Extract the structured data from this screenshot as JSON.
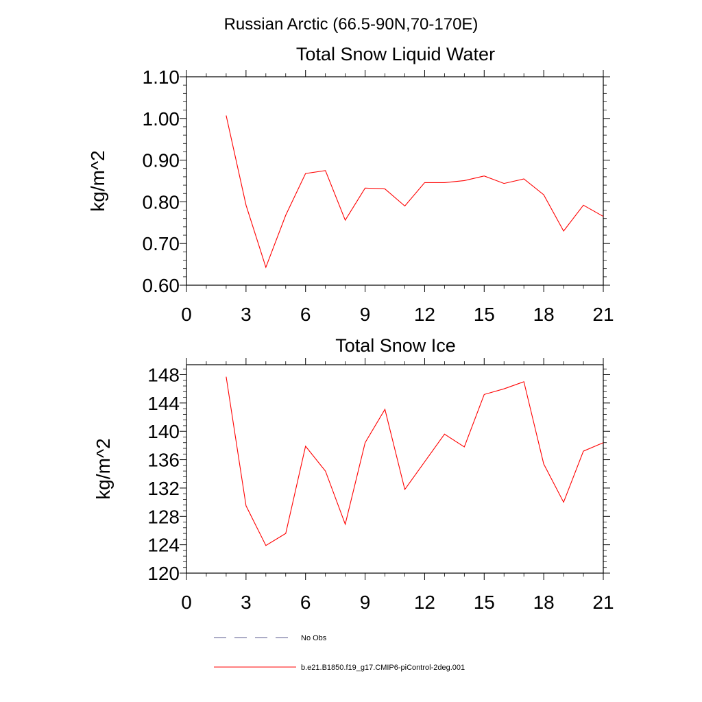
{
  "figure": {
    "main_title": "Russian Arctic (66.5-90N,70-170E)"
  },
  "legend": [
    {
      "label": "No Obs",
      "style": "dashed",
      "color": "#5a5a8c"
    },
    {
      "label": "b.e21.B1850.f19_g17.CMIP6-piControl-2deg.001",
      "style": "solid",
      "color": "#ff0000"
    }
  ],
  "chart_data": [
    {
      "type": "line",
      "title": "Total Snow Liquid Water",
      "xlabel": "",
      "ylabel": "kg/m^2",
      "xlim": [
        0,
        21
      ],
      "ylim": [
        0.6,
        1.1
      ],
      "x_ticks": [
        0,
        3,
        6,
        9,
        12,
        15,
        18,
        21
      ],
      "x_tick_labels": [
        "0",
        "3",
        "6",
        "9",
        "12",
        "15",
        "18",
        "21"
      ],
      "y_ticks": [
        0.6,
        0.7,
        0.8,
        0.9,
        1.0,
        1.1
      ],
      "y_tick_labels": [
        "0.60",
        "0.70",
        "0.80",
        "0.90",
        "1.00",
        "1.10"
      ],
      "grid": false,
      "series": [
        {
          "color": "#ff0000",
          "x": [
            2,
            3,
            4,
            5,
            6,
            7,
            8,
            9,
            10,
            11,
            12,
            13,
            14,
            15,
            16,
            17,
            18,
            19,
            20,
            21
          ],
          "values": [
            1.007,
            0.792,
            0.643,
            0.768,
            0.868,
            0.875,
            0.756,
            0.833,
            0.831,
            0.79,
            0.846,
            0.846,
            0.851,
            0.862,
            0.844,
            0.855,
            0.817,
            0.73,
            0.792,
            0.765
          ]
        }
      ]
    },
    {
      "type": "line",
      "title": "Total Snow Ice",
      "xlabel": "",
      "ylabel": "kg/m^2",
      "xlim": [
        0,
        21
      ],
      "ylim": [
        120,
        149.4
      ],
      "x_ticks": [
        0,
        3,
        6,
        9,
        12,
        15,
        18,
        21
      ],
      "x_tick_labels": [
        "0",
        "3",
        "6",
        "9",
        "12",
        "15",
        "18",
        "21"
      ],
      "y_ticks": [
        120,
        124,
        128,
        132,
        136,
        140,
        144,
        148
      ],
      "y_tick_labels": [
        "120",
        "124",
        "128",
        "132",
        "136",
        "140",
        "144",
        "148"
      ],
      "grid": false,
      "series": [
        {
          "color": "#ff0000",
          "x": [
            2,
            3,
            4,
            5,
            6,
            7,
            8,
            9,
            10,
            11,
            12,
            13,
            14,
            15,
            16,
            17,
            18,
            19,
            20,
            21
          ],
          "values": [
            147.7,
            129.5,
            123.9,
            125.6,
            137.9,
            134.4,
            126.9,
            138.4,
            143.1,
            131.8,
            135.7,
            139.6,
            137.8,
            145.2,
            146.0,
            147.0,
            135.4,
            130.0,
            137.2,
            138.4
          ]
        }
      ]
    }
  ]
}
